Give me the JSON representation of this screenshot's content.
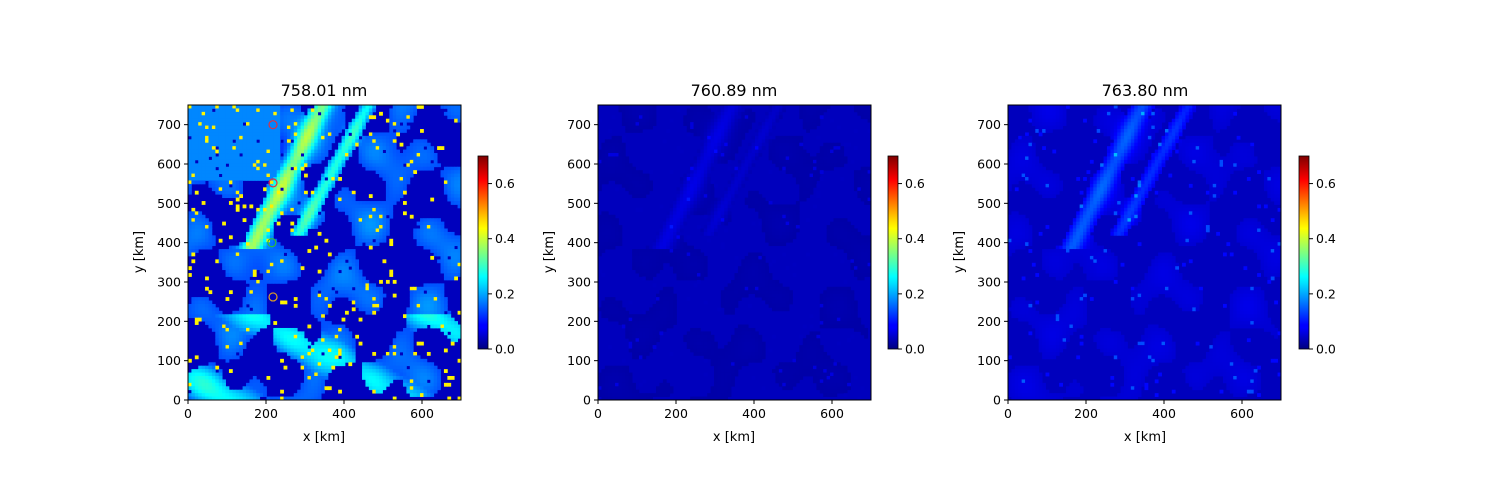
{
  "chart_data": [
    {
      "type": "heatmap",
      "title": "758.01 nm",
      "xlabel": "x [km]",
      "ylabel": "y [km]",
      "xlim": [
        0,
        700
      ],
      "ylim": [
        0,
        750
      ],
      "x_ticks": [
        "0",
        "200",
        "400",
        "600"
      ],
      "y_ticks": [
        "0",
        "100",
        "200",
        "300",
        "400",
        "500",
        "600",
        "700"
      ],
      "colorbar": {
        "colormap": "jet",
        "range": [
          0,
          0.7
        ],
        "ticks": [
          "0.0",
          "0.2",
          "0.4",
          "0.6"
        ]
      },
      "intensity": "high",
      "markers": [
        {
          "x": 218,
          "y": 700,
          "color": "#e03040"
        },
        {
          "x": 218,
          "y": 552,
          "color": "#e03040"
        },
        {
          "x": 215,
          "y": 400,
          "color": "#30c030"
        },
        {
          "x": 218,
          "y": 262,
          "color": "#e0a020"
        }
      ]
    },
    {
      "type": "heatmap",
      "title": "760.89 nm",
      "xlabel": "x [km]",
      "ylabel": "y [km]",
      "xlim": [
        0,
        700
      ],
      "ylim": [
        0,
        750
      ],
      "x_ticks": [
        "0",
        "200",
        "400",
        "600"
      ],
      "y_ticks": [
        "0",
        "100",
        "200",
        "300",
        "400",
        "500",
        "600",
        "700"
      ],
      "colorbar": {
        "colormap": "jet",
        "range": [
          0,
          0.7
        ],
        "ticks": [
          "0.0",
          "0.2",
          "0.4",
          "0.6"
        ]
      },
      "intensity": "low",
      "markers": []
    },
    {
      "type": "heatmap",
      "title": "763.80 nm",
      "xlabel": "x [km]",
      "ylabel": "y [km]",
      "xlim": [
        0,
        700
      ],
      "ylim": [
        0,
        750
      ],
      "x_ticks": [
        "0",
        "200",
        "400",
        "600"
      ],
      "y_ticks": [
        "0",
        "100",
        "200",
        "300",
        "400",
        "500",
        "600",
        "700"
      ],
      "colorbar": {
        "colormap": "jet",
        "range": [
          0,
          0.7
        ],
        "ticks": [
          "0.0",
          "0.2",
          "0.4",
          "0.6"
        ]
      },
      "intensity": "medium",
      "markers": []
    }
  ]
}
